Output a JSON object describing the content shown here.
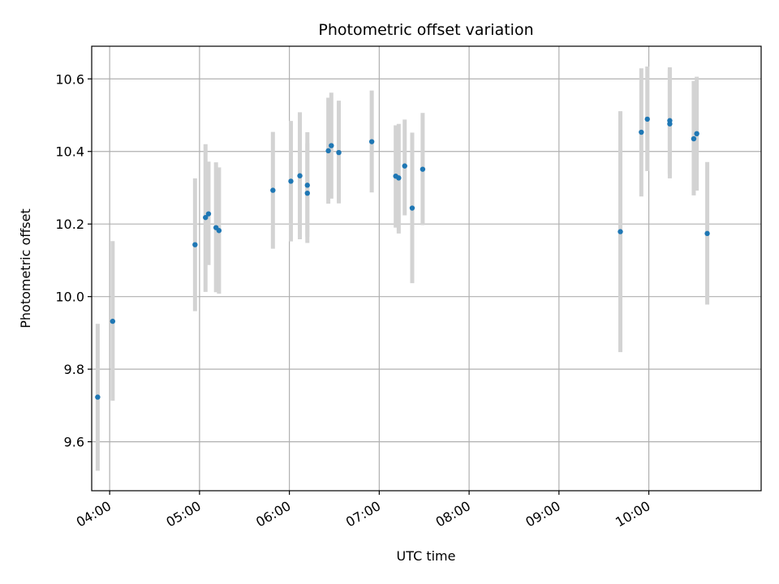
{
  "chart_data": {
    "type": "scatter",
    "title": "Photometric offset variation",
    "xlabel": "UTC time",
    "ylabel": "Photometric offset",
    "x_unit": "UTC time (HH:MM)",
    "xlim": [
      "03:48",
      "11:15"
    ],
    "ylim": [
      9.465,
      10.69
    ],
    "x_ticks": [
      "04:00",
      "05:00",
      "06:00",
      "07:00",
      "08:00",
      "09:00",
      "10:00"
    ],
    "y_ticks": [
      9.6,
      9.8,
      10.0,
      10.2,
      10.4,
      10.6
    ],
    "y_tick_labels": [
      "9.6",
      "9.8",
      "10.0",
      "10.2",
      "10.4",
      "10.6"
    ],
    "grid": true,
    "marker_color": "#1f77b4",
    "errorbar_color": "#d3d3d3",
    "points": [
      {
        "t": "03:52",
        "y": 9.723,
        "lo": 9.52,
        "hi": 9.925
      },
      {
        "t": "04:02",
        "y": 9.932,
        "lo": 9.713,
        "hi": 10.153
      },
      {
        "t": "04:57",
        "y": 10.143,
        "lo": 9.96,
        "hi": 10.326
      },
      {
        "t": "05:04",
        "y": 10.218,
        "lo": 10.013,
        "hi": 10.42
      },
      {
        "t": "05:06",
        "y": 10.228,
        "lo": 10.087,
        "hi": 10.372
      },
      {
        "t": "05:11",
        "y": 10.19,
        "lo": 10.012,
        "hi": 10.37
      },
      {
        "t": "05:13",
        "y": 10.182,
        "lo": 10.008,
        "hi": 10.356
      },
      {
        "t": "05:49",
        "y": 10.293,
        "lo": 10.132,
        "hi": 10.454
      },
      {
        "t": "06:01",
        "y": 10.318,
        "lo": 10.152,
        "hi": 10.484
      },
      {
        "t": "06:07",
        "y": 10.333,
        "lo": 10.158,
        "hi": 10.508
      },
      {
        "t": "06:12",
        "y": 10.307,
        "lo": 10.165,
        "hi": 10.453
      },
      {
        "t": "06:12",
        "y": 10.285,
        "lo": 10.148,
        "hi": 10.422
      },
      {
        "t": "06:26",
        "y": 10.402,
        "lo": 10.256,
        "hi": 10.548
      },
      {
        "t": "06:28",
        "y": 10.416,
        "lo": 10.27,
        "hi": 10.562
      },
      {
        "t": "06:33",
        "y": 10.397,
        "lo": 10.257,
        "hi": 10.54
      },
      {
        "t": "06:55",
        "y": 10.427,
        "lo": 10.287,
        "hi": 10.568
      },
      {
        "t": "07:11",
        "y": 10.332,
        "lo": 10.19,
        "hi": 10.472
      },
      {
        "t": "07:13",
        "y": 10.327,
        "lo": 10.174,
        "hi": 10.476
      },
      {
        "t": "07:17",
        "y": 10.36,
        "lo": 10.224,
        "hi": 10.488
      },
      {
        "t": "07:22",
        "y": 10.244,
        "lo": 10.037,
        "hi": 10.452
      },
      {
        "t": "07:29",
        "y": 10.351,
        "lo": 10.197,
        "hi": 10.506
      },
      {
        "t": "09:41",
        "y": 10.179,
        "lo": 9.847,
        "hi": 10.511
      },
      {
        "t": "09:55",
        "y": 10.453,
        "lo": 10.276,
        "hi": 10.629
      },
      {
        "t": "09:59",
        "y": 10.489,
        "lo": 10.346,
        "hi": 10.634
      },
      {
        "t": "10:14",
        "y": 10.485,
        "lo": 10.338,
        "hi": 10.632
      },
      {
        "t": "10:14",
        "y": 10.476,
        "lo": 10.326,
        "hi": 10.626
      },
      {
        "t": "10:30",
        "y": 10.435,
        "lo": 10.279,
        "hi": 10.594
      },
      {
        "t": "10:32",
        "y": 10.449,
        "lo": 10.292,
        "hi": 10.606
      },
      {
        "t": "10:39",
        "y": 10.174,
        "lo": 9.978,
        "hi": 10.371
      }
    ]
  }
}
